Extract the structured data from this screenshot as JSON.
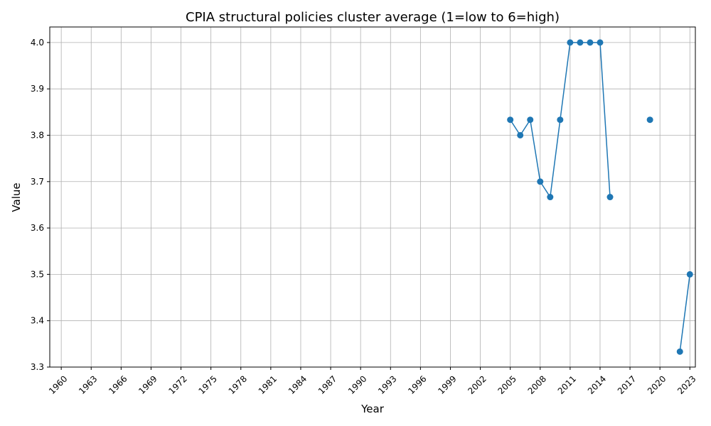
{
  "chart_data": {
    "type": "line",
    "title": "CPIA structural policies cluster average (1=low to 6=high)",
    "xlabel": "Year",
    "ylabel": "Value",
    "xlim": [
      1958.85,
      2023.55
    ],
    "ylim": [
      3.3,
      4.0335
    ],
    "x_ticks": [
      1960,
      1963,
      1966,
      1969,
      1972,
      1975,
      1978,
      1981,
      1984,
      1987,
      1990,
      1993,
      1996,
      1999,
      2002,
      2005,
      2008,
      2011,
      2014,
      2017,
      2020,
      2023
    ],
    "y_ticks": [
      3.3,
      3.4,
      3.5,
      3.6,
      3.7,
      3.8,
      3.9,
      4.0
    ],
    "y_tick_labels": [
      "3.3",
      "3.4",
      "3.5",
      "3.6",
      "3.7",
      "3.8",
      "3.9",
      "4.0"
    ],
    "grid": true,
    "color": "#1f77b4",
    "series": [
      {
        "segments": [
          [
            [
              2005,
              3.8333
            ],
            [
              2006,
              3.8
            ],
            [
              2007,
              3.8333
            ],
            [
              2008,
              3.7
            ],
            [
              2009,
              3.6667
            ],
            [
              2010,
              3.8333
            ],
            [
              2011,
              4.0
            ],
            [
              2012,
              4.0
            ],
            [
              2013,
              4.0
            ],
            [
              2014,
              4.0
            ],
            [
              2015,
              3.6667
            ]
          ],
          [
            [
              2019,
              3.8333
            ]
          ],
          [
            [
              2022,
              3.3333
            ],
            [
              2023,
              3.5
            ]
          ]
        ]
      }
    ]
  }
}
